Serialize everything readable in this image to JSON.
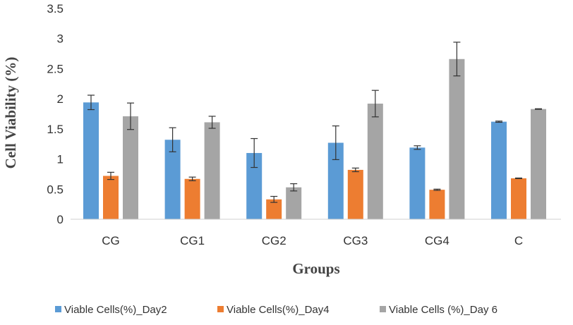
{
  "chart_data": {
    "type": "bar",
    "title": "",
    "xlabel": "Groups",
    "ylabel": "Cell Viability (%)",
    "ylim": [
      0,
      3.5
    ],
    "yticks": [
      "0",
      "0.5",
      "1",
      "1.5",
      "2",
      "2.5",
      "3",
      "3.5"
    ],
    "categories": [
      "CG",
      "CG1",
      "CG2",
      "CG3",
      "CG4",
      "C"
    ],
    "legend_position": "bottom",
    "grid": false,
    "series": [
      {
        "name": "Viable Cells(%)_Day2",
        "color": "#5b9bd5",
        "values": [
          1.94,
          1.32,
          1.1,
          1.27,
          1.19,
          1.62
        ],
        "errors": [
          0.12,
          0.2,
          0.24,
          0.28,
          0.03,
          0.01
        ]
      },
      {
        "name": "Viable Cells(%)_Day4",
        "color": "#ed7d31",
        "values": [
          0.72,
          0.67,
          0.33,
          0.82,
          0.49,
          0.68
        ],
        "errors": [
          0.06,
          0.03,
          0.05,
          0.03,
          0.01,
          0.005
        ]
      },
      {
        "name": "Viable Cells (%)_Day 6",
        "color": "#a5a5a5",
        "values": [
          1.71,
          1.61,
          0.53,
          1.92,
          2.66,
          1.83
        ],
        "errors": [
          0.22,
          0.1,
          0.06,
          0.22,
          0.28,
          0.005
        ]
      }
    ]
  }
}
